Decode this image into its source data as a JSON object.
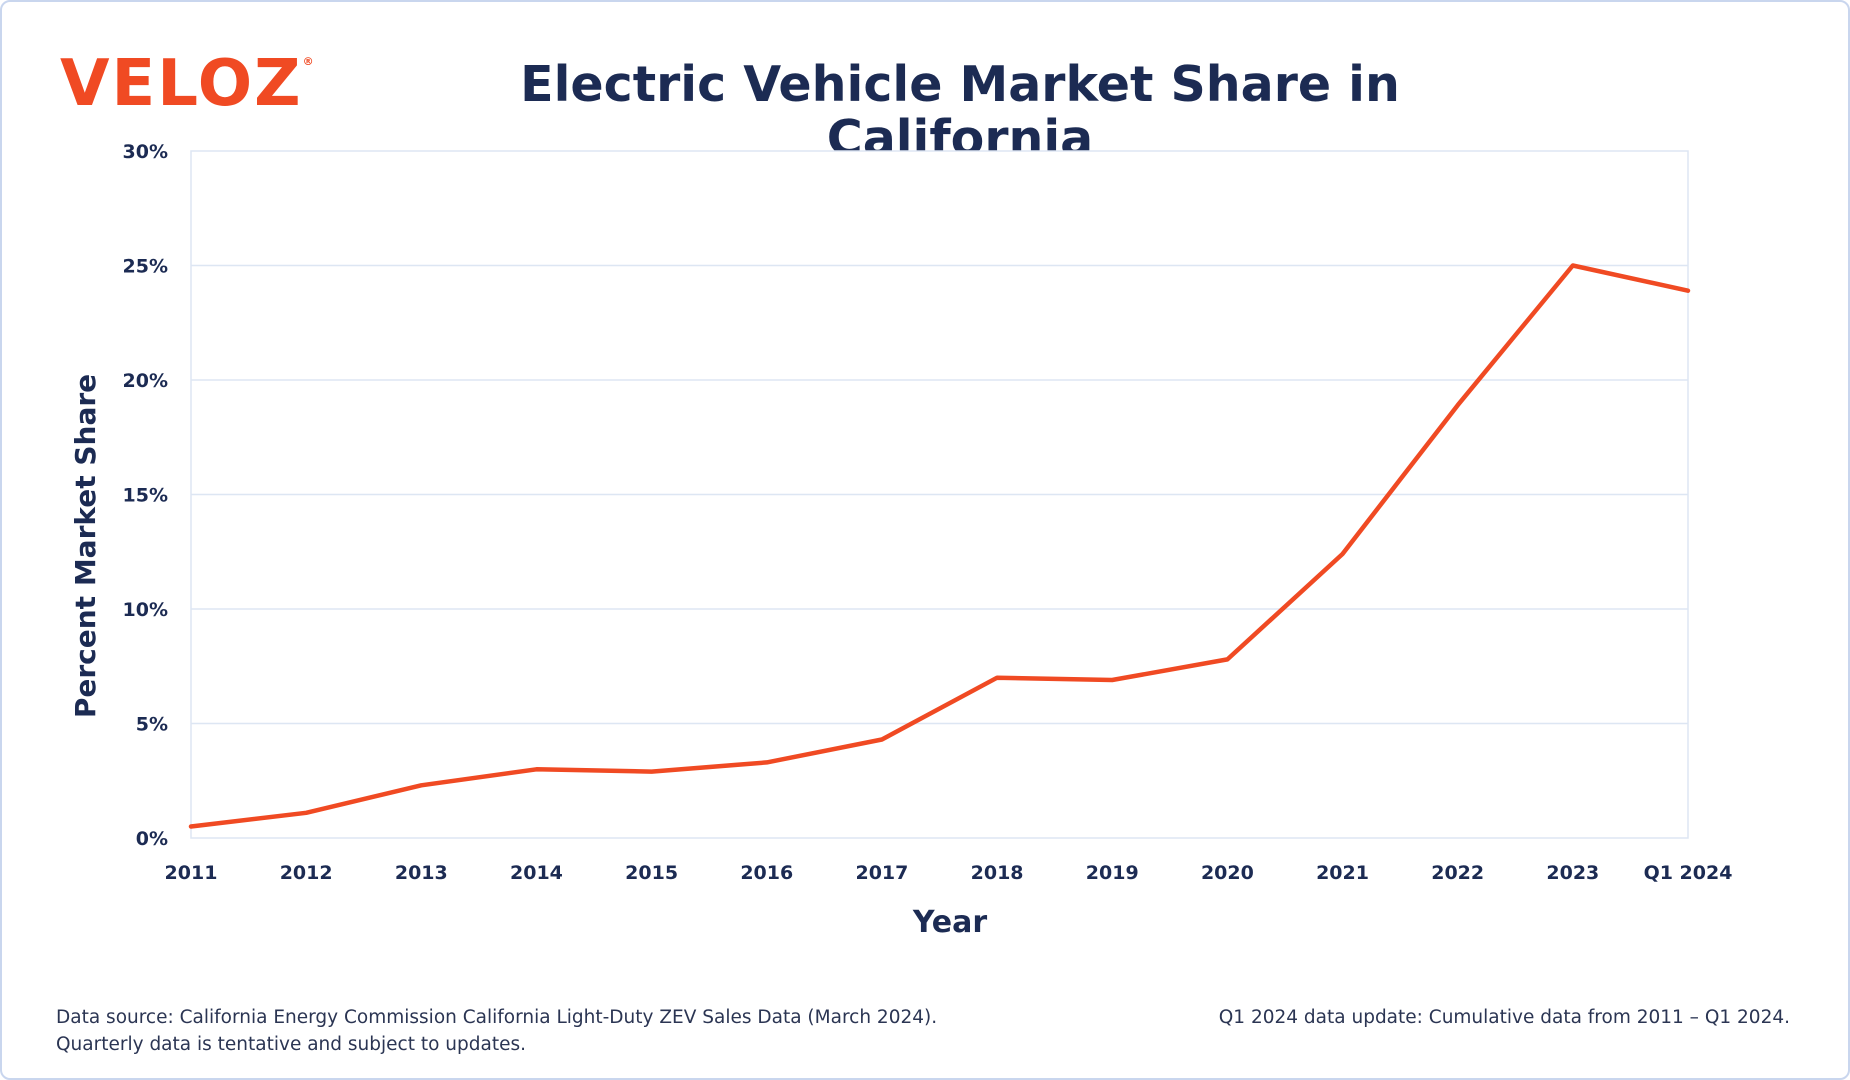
{
  "brand": {
    "logo_text": "VELOZ",
    "logo_mark": "®",
    "brand_color": "#f04a23",
    "text_color": "#1c2b53"
  },
  "footnotes": {
    "left_line1": "Data source: California Energy Commission California Light-Duty ZEV Sales Data (March 2024).",
    "left_line2": "Quarterly data is tentative and subject to updates.",
    "right": "Q1 2024 data update: Cumulative data from 2011 – Q1 2024."
  },
  "chart_data": {
    "type": "line",
    "title": "Electric Vehicle Market Share in California",
    "xlabel": "Year",
    "ylabel": "Percent Market Share",
    "categories": [
      "2011",
      "2012",
      "2013",
      "2014",
      "2015",
      "2016",
      "2017",
      "2018",
      "2019",
      "2020",
      "2021",
      "2022",
      "2023",
      "Q1 2024"
    ],
    "series": [
      {
        "values": [
          0.5,
          1.1,
          2.3,
          3.0,
          2.9,
          3.3,
          4.3,
          7.0,
          6.9,
          7.8,
          12.4,
          18.9,
          25.0,
          23.9
        ],
        "color": "#f04a23"
      }
    ],
    "yticks": [
      "0%",
      "5%",
      "10%",
      "15%",
      "20%",
      "25%",
      "30%"
    ],
    "ylim": [
      0,
      30
    ],
    "grid": true,
    "legend": "none"
  }
}
